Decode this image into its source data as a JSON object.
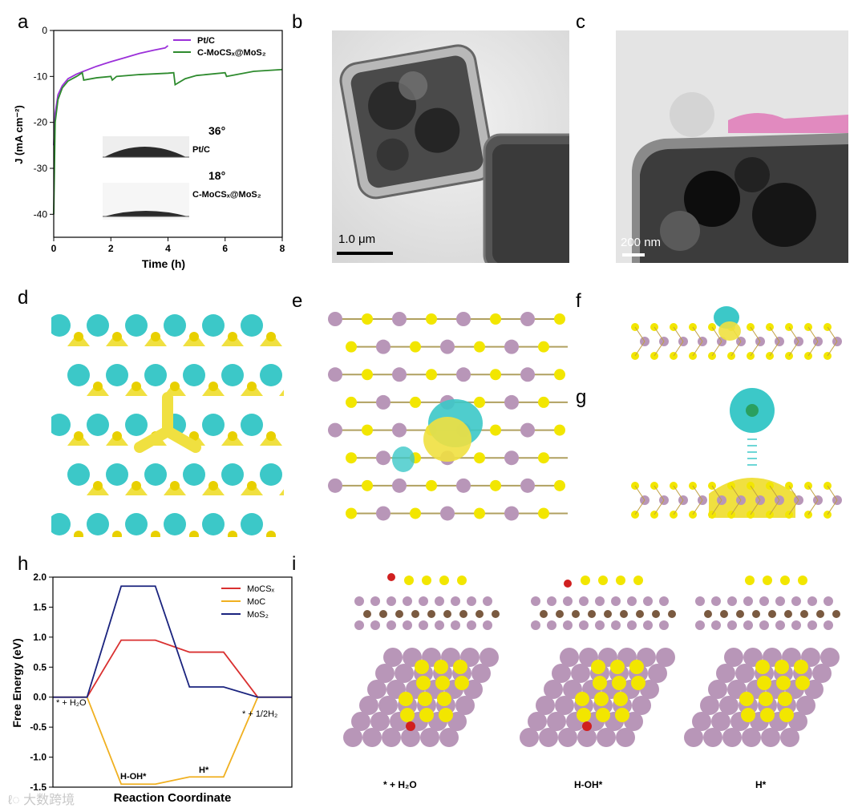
{
  "panel_labels": {
    "a": "a",
    "b": "b",
    "c": "c",
    "d": "d",
    "e": "e",
    "f": "f",
    "g": "g",
    "h": "h",
    "i": "i"
  },
  "panel_a": {
    "ylabel": "J (mA cm⁻²)",
    "xlabel": "Time (h)",
    "legend": [
      "Pt/C",
      "C-MoCSₓ@MoS₂"
    ],
    "inset_top_angle": "36°",
    "inset_top_label": "Pt/C",
    "inset_bottom_angle": "18°",
    "inset_bottom_label": "C-MoCSₓ@MoS₂"
  },
  "panel_b": {
    "scale_bar": "1.0 μm"
  },
  "panel_c": {
    "scale_bar": "200 nm"
  },
  "panel_h": {
    "annotations": [
      "* + H₂O",
      "H-OH*",
      "H*",
      "* + 1/2H₂"
    ]
  },
  "panel_i": {
    "captions": [
      "* + H₂O",
      "H-OH*",
      "H*"
    ]
  },
  "watermark": "大数跨境",
  "colors": {
    "pt_c": "#9b30d9",
    "moc_mos2": "#2e8b2e",
    "mocsx": "#d93030",
    "moc": "#f0b020",
    "mos2": "#1a237e",
    "mo": "#b896b8",
    "s": "#f2e600",
    "iso_cyan": "#3cc8c8",
    "iso_yellow": "#f0e040"
  },
  "chart_data": [
    {
      "type": "line",
      "title": "",
      "xlabel": "Time (h)",
      "ylabel": "J (mA cm⁻²)",
      "xlim": [
        0,
        8
      ],
      "ylim": [
        -45,
        0
      ],
      "xticks": [
        0,
        2,
        4,
        6,
        8
      ],
      "yticks": [
        0,
        -10,
        -20,
        -30,
        -40
      ],
      "legend_position": "top-right",
      "series": [
        {
          "name": "Pt/C",
          "x": [
            0,
            0.05,
            0.15,
            0.3,
            0.5,
            0.8,
            1.0,
            1.5,
            2.0,
            2.5,
            3.0,
            3.5,
            3.9,
            4.0
          ],
          "y": [
            -25,
            -18,
            -14,
            -12,
            -10.5,
            -9.5,
            -9,
            -7.8,
            -6.8,
            -5.9,
            -5.0,
            -4.3,
            -3.8,
            -3.3
          ]
        },
        {
          "name": "C-MoCSₓ@MoS₂",
          "x": [
            0,
            0.05,
            0.15,
            0.3,
            0.5,
            0.8,
            1.0,
            1.05,
            1.5,
            2.0,
            2.05,
            2.2,
            3.0,
            4.0,
            4.2,
            4.25,
            4.6,
            5.0,
            6.0,
            6.05,
            7.0,
            8.0
          ],
          "y": [
            -40,
            -20,
            -15,
            -12.5,
            -11,
            -10,
            -9.2,
            -10.8,
            -10.3,
            -10,
            -10.8,
            -10,
            -9.6,
            -9.3,
            -9.2,
            -11.8,
            -10.5,
            -9.8,
            -9.2,
            -10.0,
            -8.9,
            -8.5
          ]
        }
      ]
    },
    {
      "type": "line",
      "title": "",
      "xlabel": "Reaction Coordinate",
      "ylabel": "Free Energy (eV)",
      "ylim": [
        -1.5,
        2.0
      ],
      "yticks": [
        2.0,
        1.5,
        1.0,
        0.5,
        0.0,
        -0.5,
        -1.0,
        -1.5
      ],
      "legend_position": "top-right",
      "series": [
        {
          "name": "MoCSₓ",
          "x": [
            0,
            1,
            2,
            3,
            4,
            5,
            6,
            7
          ],
          "y": [
            0,
            0,
            0.95,
            0.95,
            0.75,
            0.75,
            0,
            0
          ]
        },
        {
          "name": "MoC",
          "x": [
            0,
            1,
            2,
            3,
            4,
            5,
            6,
            7
          ],
          "y": [
            0,
            0,
            -1.45,
            -1.45,
            -1.33,
            -1.33,
            0,
            0
          ]
        },
        {
          "name": "MoS₂",
          "x": [
            0,
            1,
            2,
            3,
            4,
            5,
            6,
            7
          ],
          "y": [
            0,
            0,
            1.85,
            1.85,
            0.17,
            0.17,
            0,
            0
          ]
        }
      ]
    }
  ]
}
